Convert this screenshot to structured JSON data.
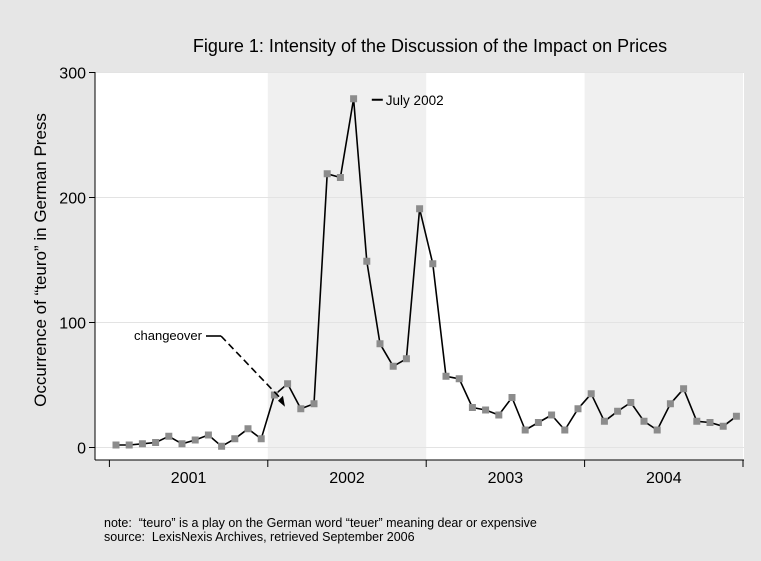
{
  "chart_data": {
    "type": "line",
    "title": "Figure 1:   Intensity of the Discussion of the Impact on Prices",
    "ylabel": "Occurrence of “teuro” in German Press",
    "xlabel": "",
    "ylim": [
      0,
      300
    ],
    "yticks": [
      0,
      100,
      200,
      300
    ],
    "year_labels": [
      "2001",
      "2002",
      "2003",
      "2004"
    ],
    "shaded_years": [
      "2002",
      "2004"
    ],
    "grid": true,
    "series": [
      {
        "marker": "square",
        "color": "#000000",
        "marker_color": "#8c8c8c",
        "values": [
          2,
          2,
          3,
          4,
          9,
          3,
          6,
          10,
          1,
          7,
          15,
          7,
          42,
          51,
          31,
          35,
          219,
          216,
          279,
          149,
          83,
          65,
          71,
          191,
          147,
          57,
          55,
          32,
          30,
          26,
          40,
          14,
          20,
          26,
          14,
          31,
          43,
          21,
          29,
          36,
          21,
          14,
          35,
          47,
          21,
          20,
          17,
          25
        ]
      }
    ],
    "annotations": [
      {
        "text": "July 2002",
        "month": 19,
        "y": 279
      },
      {
        "text": "changeover",
        "month": 13,
        "y": 7
      }
    ]
  },
  "notes": [
    "note:  “teuro” is a play on the German word “teuer” meaning dear or expensive",
    "source:  LexisNexis Archives, retrieved September 2006"
  ]
}
